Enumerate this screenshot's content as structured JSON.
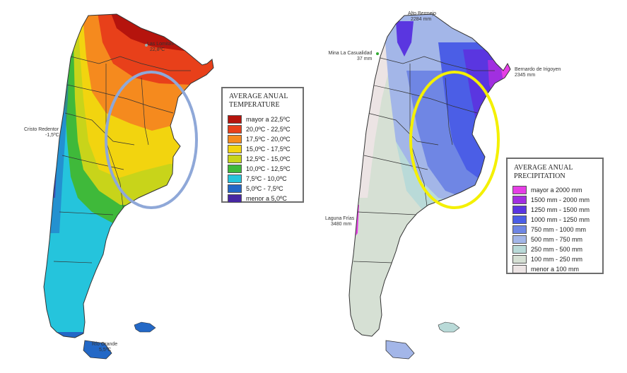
{
  "temperature_map": {
    "legend": {
      "title_line1": "AVERAGE ANUAL",
      "title_line2": "TEMPERATURE",
      "items": [
        {
          "label": "mayor a 22,5ºC",
          "color": "#b5140d"
        },
        {
          "label": "20,0ºC - 22,5ºC",
          "color": "#e8401a"
        },
        {
          "label": "17,5ºC - 20,0ºC",
          "color": "#f58a1e"
        },
        {
          "label": "15,0ºC - 17,5ºC",
          "color": "#f2d40f"
        },
        {
          "label": "12,5ºC - 15,0ºC",
          "color": "#c8d41a"
        },
        {
          "label": "10,0ºC - 12,5ºC",
          "color": "#3fb93a"
        },
        {
          "label": "7,5ºC - 10,0ºC",
          "color": "#25c4dc"
        },
        {
          "label": "5,0ºC - 7,5ºC",
          "color": "#2368c6"
        },
        {
          "label": "menor a 5,0ºC",
          "color": "#4727a3"
        }
      ]
    },
    "places": [
      {
        "name": "Las Lomitas",
        "value": "22,8ºC"
      },
      {
        "name": "Cristo Redentor",
        "value": "-1,5ºC"
      },
      {
        "name": "Río Grande",
        "value": "5,5ºC"
      }
    ],
    "highlight_color": "#8fa8d8"
  },
  "precipitation_map": {
    "legend": {
      "title_line1": "AVERAGE ANUAL",
      "title_line2": "PRECIPITATION",
      "items": [
        {
          "label": "mayor a 2000 mm",
          "color": "#e53fe5"
        },
        {
          "label": "1500 mm - 2000 mm",
          "color": "#a12fe0"
        },
        {
          "label": "1250 mm - 1500 mm",
          "color": "#5a36e0"
        },
        {
          "label": "1000 mm - 1250 mm",
          "color": "#4b5ee6"
        },
        {
          "label": "750 mm - 1000 mm",
          "color": "#6f86e4"
        },
        {
          "label": "500 mm - 750 mm",
          "color": "#a3b6e8"
        },
        {
          "label": "250 mm - 500 mm",
          "color": "#b9dad8"
        },
        {
          "label": "100 mm - 250 mm",
          "color": "#d6e0d4"
        },
        {
          "label": "menor a 100 mm",
          "color": "#ece4e4"
        }
      ]
    },
    "places": [
      {
        "name": "Alto Bermejo",
        "value": "2284 mm"
      },
      {
        "name": "Mina La Casualidad",
        "value": "37 mm"
      },
      {
        "name": "Bernardo de Irigoyen",
        "value": "2345 mm"
      },
      {
        "name": "Laguna Frías",
        "value": "3480 mm"
      }
    ],
    "highlight_color": "#f4f000"
  }
}
